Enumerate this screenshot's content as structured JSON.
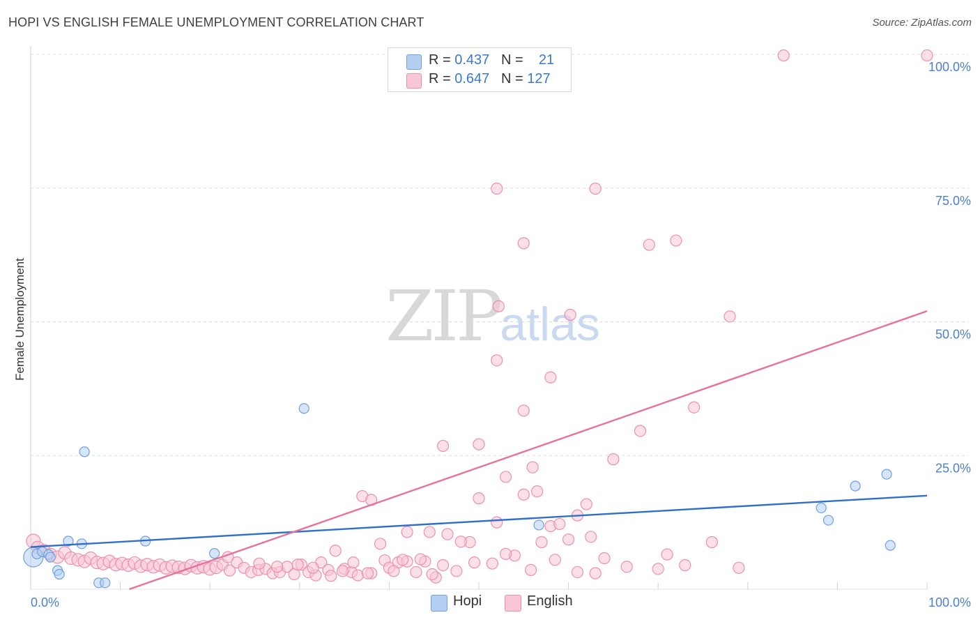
{
  "header": {
    "title": "HOPI VS ENGLISH FEMALE UNEMPLOYMENT CORRELATION CHART",
    "source": "Source: ZipAtlas.com"
  },
  "legend": {
    "rows": [
      {
        "r_label": "R = ",
        "r_value": "0.437",
        "n_label": "N = ",
        "n_value": "21",
        "color": "#a9c8f0"
      },
      {
        "r_label": "R = ",
        "r_value": "0.647",
        "n_label": "N = ",
        "n_value": "127",
        "color": "#f6b8cb"
      }
    ]
  },
  "bottom_legend": [
    {
      "label": "Hopi",
      "color": "#a9c8f0"
    },
    {
      "label": "English",
      "color": "#f6b8cb"
    }
  ],
  "watermark": {
    "zip": "ZIP",
    "atlas": "atlas"
  },
  "chart_data": {
    "type": "scatter",
    "title": "HOPI VS ENGLISH FEMALE UNEMPLOYMENT CORRELATION CHART",
    "xlabel": "",
    "ylabel": "Female Unemployment",
    "xlim": [
      0,
      100
    ],
    "ylim": [
      0,
      100
    ],
    "x_tick_labels": [
      {
        "v": 0,
        "label": "0.0%"
      },
      {
        "v": 100,
        "label": "100.0%"
      }
    ],
    "y_tick_labels": [
      {
        "v": 25,
        "label": "25.0%"
      },
      {
        "v": 50,
        "label": "50.0%"
      },
      {
        "v": 75,
        "label": "75.0%"
      },
      {
        "v": 100,
        "label": "100.0%"
      }
    ],
    "series": [
      {
        "name": "Hopi",
        "color": "#6f9fe0",
        "fill": "#b4cff2",
        "trend": {
          "x0": 0,
          "y0": 7.9,
          "x1": 100,
          "y1": 17.5,
          "color": "#2f6fcc"
        },
        "points": [
          [
            0.3,
            6.0,
            14
          ],
          [
            0.7,
            6.6,
            7
          ],
          [
            1.3,
            7.0,
            7
          ],
          [
            2.0,
            6.5,
            7
          ],
          [
            2.2,
            6.0,
            7
          ],
          [
            3.0,
            3.5,
            7
          ],
          [
            3.2,
            2.8,
            7
          ],
          [
            4.2,
            9.0,
            7
          ],
          [
            5.7,
            8.5,
            7
          ],
          [
            6.0,
            25.7,
            7
          ],
          [
            7.6,
            1.2,
            7
          ],
          [
            8.3,
            1.2,
            7
          ],
          [
            12.8,
            9.0,
            7
          ],
          [
            20.5,
            6.7,
            7
          ],
          [
            30.5,
            33.8,
            7
          ],
          [
            56.7,
            12.0,
            7
          ],
          [
            88.2,
            15.2,
            7
          ],
          [
            89.0,
            12.9,
            7
          ],
          [
            92.0,
            19.3,
            7
          ],
          [
            95.5,
            21.5,
            7
          ],
          [
            95.9,
            8.2,
            7
          ]
        ]
      },
      {
        "name": "English",
        "color": "#ee8fae",
        "fill": "#f8c6d5",
        "trend": {
          "x0": 11.0,
          "y0": 0,
          "x1": 100,
          "y1": 52.0,
          "color": "#e8709a"
        },
        "points": [
          [
            0.3,
            9.0,
            10
          ],
          [
            0.8,
            7.8,
            9
          ],
          [
            1.5,
            7.2,
            9
          ],
          [
            2.2,
            6.5,
            9
          ],
          [
            3.0,
            6.0,
            9
          ],
          [
            3.8,
            6.8,
            9
          ],
          [
            4.5,
            5.8,
            9
          ],
          [
            5.3,
            5.5,
            9
          ],
          [
            6.0,
            5.2,
            9
          ],
          [
            6.7,
            5.8,
            9
          ],
          [
            7.4,
            5.0,
            9
          ],
          [
            8.1,
            4.8,
            9
          ],
          [
            8.8,
            5.2,
            9
          ],
          [
            9.5,
            4.6,
            9
          ],
          [
            10.2,
            4.8,
            9
          ],
          [
            10.9,
            4.5,
            9
          ],
          [
            11.6,
            4.9,
            9
          ],
          [
            12.3,
            4.3,
            9
          ],
          [
            13.0,
            4.6,
            9
          ],
          [
            13.7,
            4.2,
            9
          ],
          [
            14.4,
            4.5,
            9
          ],
          [
            15.1,
            4.0,
            9
          ],
          [
            15.8,
            4.3,
            9
          ],
          [
            16.5,
            4.1,
            9
          ],
          [
            17.2,
            3.9,
            9
          ],
          [
            17.9,
            4.4,
            9
          ],
          [
            18.6,
            4.0,
            9
          ],
          [
            19.3,
            4.2,
            9
          ],
          [
            20.0,
            3.8,
            9
          ],
          [
            20.7,
            4.1,
            9
          ],
          [
            21.4,
            4.6,
            8
          ],
          [
            22.2,
            3.5,
            8
          ],
          [
            23.0,
            5.0,
            8
          ],
          [
            23.8,
            4.0,
            8
          ],
          [
            24.6,
            3.2,
            8
          ],
          [
            25.4,
            3.6,
            8
          ],
          [
            26.2,
            3.8,
            8
          ],
          [
            27.0,
            3.0,
            8
          ],
          [
            27.8,
            3.2,
            8
          ],
          [
            28.6,
            4.2,
            8
          ],
          [
            29.4,
            2.8,
            8
          ],
          [
            30.2,
            4.6,
            8
          ],
          [
            31.0,
            3.2,
            8
          ],
          [
            31.8,
            2.6,
            8
          ],
          [
            32.4,
            5.0,
            8
          ],
          [
            33.2,
            3.6,
            8
          ],
          [
            34.0,
            7.2,
            8
          ],
          [
            35.0,
            3.8,
            8
          ],
          [
            35.8,
            3.2,
            8
          ],
          [
            36.5,
            2.6,
            8
          ],
          [
            38.0,
            3.0,
            8
          ],
          [
            39.0,
            8.5,
            8
          ],
          [
            39.5,
            5.4,
            8
          ],
          [
            40.0,
            4.0,
            8
          ],
          [
            41.0,
            5.0,
            8
          ],
          [
            42.0,
            5.2,
            8
          ],
          [
            43.0,
            3.2,
            8
          ],
          [
            44.0,
            5.2,
            8
          ],
          [
            44.5,
            10.7,
            8
          ],
          [
            45.2,
            2.2,
            8
          ],
          [
            46.0,
            4.5,
            8
          ],
          [
            49.0,
            8.8,
            8
          ],
          [
            50.0,
            17.0,
            8
          ],
          [
            52.0,
            12.5,
            8
          ],
          [
            53.0,
            21.0,
            8
          ],
          [
            54.0,
            6.3,
            8
          ],
          [
            55.0,
            17.7,
            8
          ],
          [
            56.0,
            22.8,
            8
          ],
          [
            56.5,
            18.3,
            8
          ],
          [
            57.0,
            8.8,
            8
          ],
          [
            58.0,
            11.8,
            8
          ],
          [
            59.0,
            12.2,
            8
          ],
          [
            60.0,
            9.3,
            8
          ],
          [
            61.0,
            13.8,
            8
          ],
          [
            62.0,
            15.9,
            8
          ],
          [
            62.5,
            9.8,
            8
          ],
          [
            63.0,
            3.0,
            8
          ],
          [
            65.0,
            24.3,
            8
          ],
          [
            68.0,
            29.6,
            8
          ],
          [
            69.0,
            64.4,
            8
          ],
          [
            71.0,
            6.5,
            8
          ],
          [
            72.0,
            65.2,
            8
          ],
          [
            74.0,
            34.0,
            8
          ],
          [
            76.0,
            8.8,
            8
          ],
          [
            78.0,
            51.0,
            8
          ],
          [
            84.0,
            99.8,
            8
          ],
          [
            100.0,
            99.8,
            8
          ],
          [
            52.0,
            74.9,
            8
          ],
          [
            63.0,
            74.9,
            8
          ],
          [
            55.0,
            64.7,
            8
          ],
          [
            52.2,
            52.9,
            8
          ],
          [
            60.2,
            51.3,
            8
          ],
          [
            52.0,
            42.8,
            8
          ],
          [
            58.0,
            39.6,
            8
          ],
          [
            55.0,
            33.4,
            8
          ],
          [
            46.0,
            26.8,
            8
          ],
          [
            50.0,
            27.1,
            8
          ],
          [
            37.0,
            17.4,
            8
          ],
          [
            38.0,
            16.7,
            8
          ],
          [
            42.0,
            10.7,
            8
          ],
          [
            46.5,
            10.3,
            8
          ],
          [
            48.0,
            8.9,
            8
          ],
          [
            53.0,
            6.6,
            8
          ],
          [
            61.0,
            3.2,
            8
          ],
          [
            36.0,
            5.0,
            8
          ],
          [
            40.5,
            3.4,
            8
          ],
          [
            41.5,
            5.5,
            8
          ],
          [
            43.5,
            5.6,
            8
          ],
          [
            33.5,
            2.5,
            8
          ],
          [
            27.5,
            4.2,
            8
          ],
          [
            22.0,
            6.0,
            8
          ],
          [
            25.5,
            4.8,
            8
          ],
          [
            29.8,
            4.6,
            8
          ],
          [
            31.5,
            4.0,
            8
          ],
          [
            34.8,
            3.4,
            8
          ],
          [
            37.6,
            3.0,
            8
          ],
          [
            44.8,
            2.8,
            8
          ],
          [
            47.5,
            3.4,
            8
          ],
          [
            49.5,
            5.0,
            8
          ],
          [
            51.5,
            4.8,
            8
          ],
          [
            55.8,
            3.6,
            8
          ],
          [
            58.5,
            5.5,
            8
          ],
          [
            64.0,
            5.8,
            8
          ],
          [
            66.5,
            4.2,
            8
          ],
          [
            70.0,
            3.8,
            8
          ],
          [
            73.0,
            4.5,
            8
          ],
          [
            79.0,
            4.0,
            8
          ]
        ]
      }
    ],
    "legend_position": "top-center",
    "grid": true
  }
}
